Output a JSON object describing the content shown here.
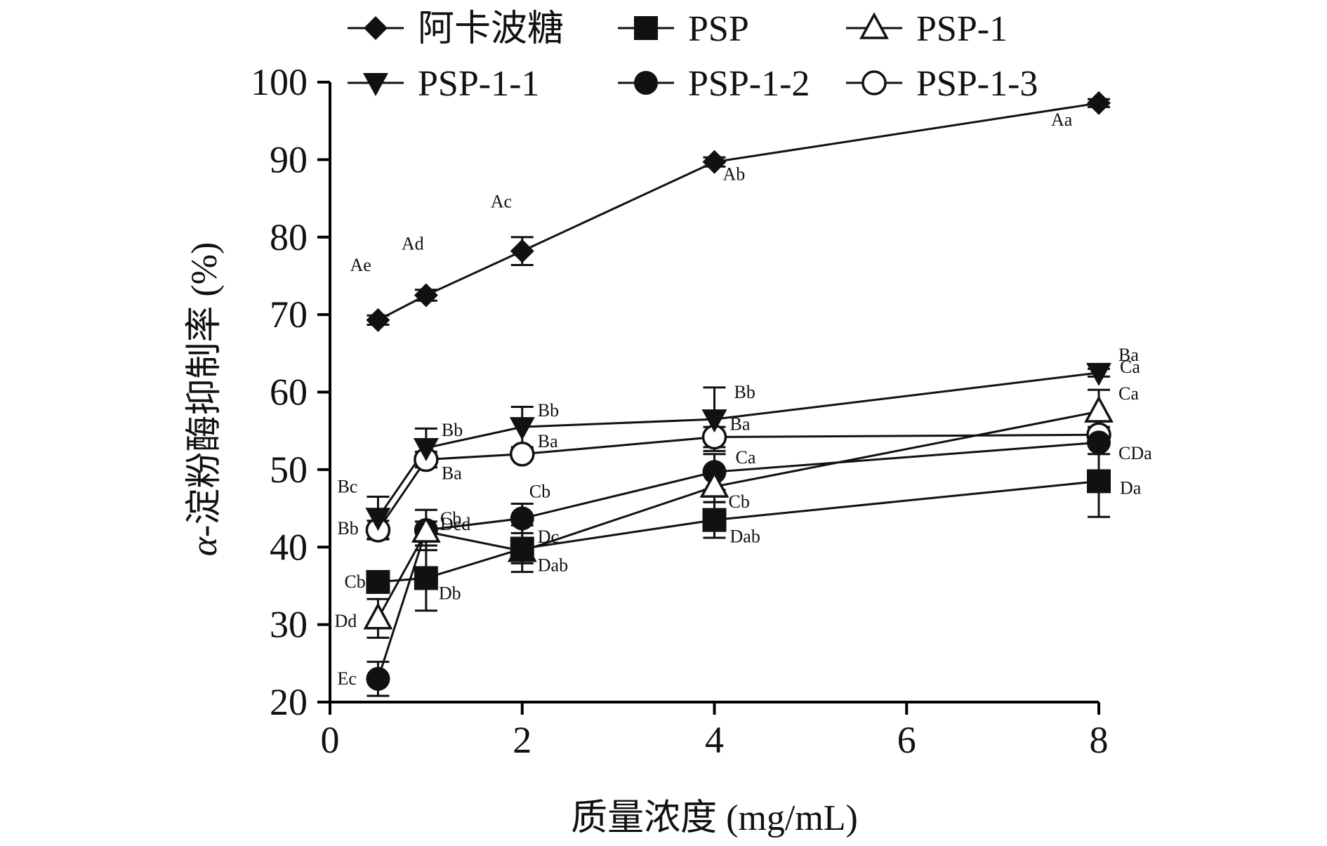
{
  "chart_data": {
    "type": "line",
    "title": "",
    "xlabel": "质量浓度 (mg/mL)",
    "ylabel_greek": "α",
    "ylabel_rest": "-淀粉酶抑制率 (%)",
    "xlim": [
      0,
      8
    ],
    "ylim": [
      20,
      100
    ],
    "xticks": [
      "0",
      "2",
      "4",
      "6",
      "8"
    ],
    "yticks": [
      "20",
      "30",
      "40",
      "50",
      "60",
      "70",
      "80",
      "90",
      "100"
    ],
    "legend_position": "top",
    "x": [
      0.5,
      1,
      2,
      4,
      8
    ],
    "series": [
      {
        "name": "阿卡波糖",
        "marker": "diamond",
        "values": [
          69.3,
          72.5,
          78.2,
          89.7,
          97.3
        ],
        "errors": [
          0.6,
          0.7,
          1.8,
          0.6,
          0.5
        ],
        "labels": [
          "Ae",
          "Ad",
          "Ac",
          "Ab",
          "Aa"
        ]
      },
      {
        "name": "PSP",
        "marker": "square",
        "values": [
          35.5,
          36.0,
          39.8,
          43.5,
          48.5
        ],
        "errors": [
          0.8,
          4.2,
          3.0,
          2.3,
          4.6
        ],
        "labels": [
          "Cb",
          "Db",
          "Dab",
          "Dab",
          "Da"
        ]
      },
      {
        "name": "PSP-1",
        "marker": "triangle-up-open",
        "values": [
          30.8,
          42.0,
          39.5,
          47.8,
          57.5
        ],
        "errors": [
          2.5,
          1.3,
          1.6,
          2.0,
          2.8
        ],
        "labels": [
          "Dd",
          "Dcd",
          "Dc",
          "Cb",
          "Ca"
        ]
      },
      {
        "name": "PSP-1-1",
        "marker": "triangle-down",
        "values": [
          43.8,
          52.8,
          55.5,
          56.5,
          62.5
        ],
        "errors": [
          2.7,
          2.5,
          2.6,
          4.1,
          0.5
        ],
        "labels": [
          "Bc",
          "Bb",
          "Bb",
          "Bb",
          "Ba"
        ]
      },
      {
        "name": "PSP-1-2",
        "marker": "circle",
        "values": [
          23.0,
          42.2,
          43.7,
          49.7,
          53.5
        ],
        "errors": [
          2.2,
          2.6,
          1.9,
          2.3,
          1.5
        ],
        "labels": [
          "Ec",
          "Cb",
          "Cb",
          "Ca",
          "CDa"
        ]
      },
      {
        "name": "PSP-1-3",
        "marker": "circle-open",
        "values": [
          42.2,
          51.3,
          52.0,
          54.2,
          54.5
        ],
        "errors": [
          1.2,
          1.0,
          0.6,
          1.3,
          1.0
        ],
        "labels": [
          "Bb",
          "Ba",
          "Ba",
          "Ba",
          "Ca"
        ]
      }
    ]
  }
}
